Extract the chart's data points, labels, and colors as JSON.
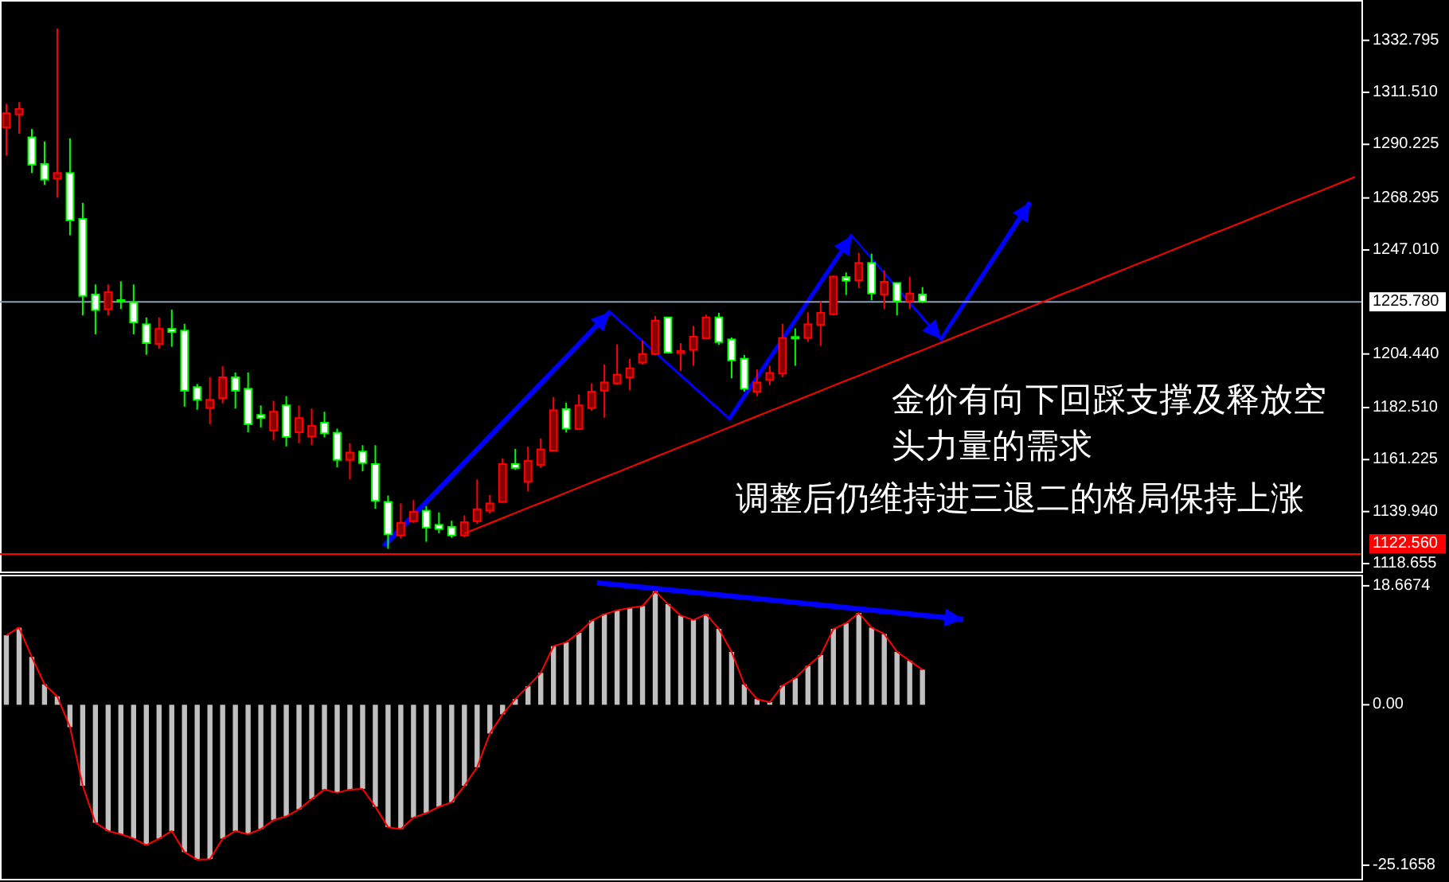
{
  "chart_data": [
    {
      "type": "candlestick",
      "tick_labels": "y",
      "categories": [
        null,
        null,
        null,
        null,
        null,
        null,
        null,
        null,
        null,
        null,
        null,
        null,
        null,
        null,
        null,
        null,
        null,
        null,
        null,
        null,
        null,
        null,
        null,
        null,
        null,
        null,
        null,
        null,
        null,
        null,
        null,
        null,
        null,
        null,
        null,
        null,
        null,
        null,
        null,
        null,
        null,
        null,
        null,
        null,
        null,
        null,
        null,
        null,
        null,
        null,
        null,
        null,
        null,
        null,
        null,
        null,
        null,
        null,
        null,
        null,
        null,
        null,
        null,
        null,
        null,
        null,
        null,
        null,
        null,
        null,
        null,
        null,
        null,
        null,
        null,
        null,
        null,
        null,
        null,
        null,
        null,
        null,
        null,
        null,
        null,
        null,
        null,
        null,
        null,
        null,
        null,
        null,
        null,
        null,
        null,
        null,
        null,
        null,
        null,
        null,
        null,
        null,
        null,
        null,
        null,
        null,
        null
      ],
      "ohlc": [
        [
          1297.2,
          1306.8,
          1285.6,
          1303.0
        ],
        [
          1302.5,
          1307.5,
          1294.6,
          1304.7
        ],
        [
          1293.1,
          1296.5,
          1278.5,
          1281.9
        ],
        [
          1282.2,
          1291.4,
          1273.6,
          1275.8
        ],
        [
          1276.2,
          1337.7,
          1268.4,
          1278.5
        ],
        [
          1278.5,
          1292.7,
          1253.0,
          1259.1
        ],
        [
          1259.7,
          1266.3,
          1220.2,
          1228.2
        ],
        [
          1228.8,
          1232.9,
          1212.5,
          1222.4
        ],
        [
          1222.8,
          1232.9,
          1220.2,
          1229.7
        ],
        [
          1226.5,
          1234.2,
          1222.8,
          1226.3
        ],
        [
          1225.6,
          1232.9,
          1212.5,
          1217.3
        ],
        [
          1216.6,
          1219.4,
          1204.1,
          1208.9
        ],
        [
          1208.6,
          1219.4,
          1206.5,
          1214.7
        ],
        [
          1214.7,
          1222.6,
          1207.4,
          1213.4
        ],
        [
          1214.0,
          1216.8,
          1182.9,
          1189.4
        ],
        [
          1190.9,
          1192.2,
          1181.6,
          1185.7
        ],
        [
          1182.3,
          1194.9,
          1175.7,
          1185.7
        ],
        [
          1186.4,
          1199.4,
          1184.2,
          1194.9
        ],
        [
          1194.9,
          1196.9,
          1182.1,
          1189.4
        ],
        [
          1190.2,
          1196.9,
          1172.4,
          1175.7
        ],
        [
          1179.5,
          1183.4,
          1174.4,
          1178.2
        ],
        [
          1173.1,
          1185.3,
          1169.2,
          1180.8
        ],
        [
          1183.4,
          1187.2,
          1166.6,
          1170.5
        ],
        [
          1172.4,
          1183.4,
          1167.9,
          1178.2
        ],
        [
          1170.7,
          1182.1,
          1167.1,
          1175.0
        ],
        [
          1176.3,
          1180.8,
          1170.3,
          1172.0
        ],
        [
          1172.2,
          1173.9,
          1158.1,
          1161.1
        ],
        [
          1161.1,
          1167.9,
          1153.1,
          1164.1
        ],
        [
          1164.5,
          1167.1,
          1156.4,
          1159.8
        ],
        [
          1159.4,
          1167.1,
          1141.1,
          1144.3
        ],
        [
          1143.9,
          1146.5,
          1124.7,
          1130.6
        ],
        [
          1130.2,
          1143.3,
          1128.9,
          1135.3
        ],
        [
          1136.0,
          1144.6,
          1135.3,
          1139.8
        ],
        [
          1140.3,
          1142.2,
          1127.6,
          1133.4
        ],
        [
          1134.5,
          1139.6,
          1131.1,
          1132.8
        ],
        [
          1133.7,
          1136.2,
          1129.2,
          1130.2
        ],
        [
          1130.2,
          1138.4,
          1129.5,
          1135.6
        ],
        [
          1136.0,
          1153.1,
          1134.9,
          1140.9
        ],
        [
          1140.3,
          1146.7,
          1139.2,
          1143.3
        ],
        [
          1143.9,
          1161.7,
          1143.5,
          1159.4
        ],
        [
          1159.4,
          1165.6,
          1157.0,
          1157.8
        ],
        [
          1152.1,
          1166.5,
          1148.2,
          1160.7
        ],
        [
          1159.1,
          1169.9,
          1157.8,
          1165.4
        ],
        [
          1164.9,
          1186.8,
          1164.9,
          1181.4
        ],
        [
          1181.9,
          1184.5,
          1172.4,
          1173.9
        ],
        [
          1173.7,
          1187.9,
          1173.3,
          1183.4
        ],
        [
          1182.3,
          1192.4,
          1181.2,
          1189.0
        ],
        [
          1189.4,
          1200.1,
          1178.4,
          1192.8
        ],
        [
          1192.4,
          1208.4,
          1191.9,
          1196.0
        ],
        [
          1194.9,
          1202.5,
          1189.6,
          1198.6
        ],
        [
          1200.9,
          1209.9,
          1200.1,
          1204.4
        ],
        [
          1204.4,
          1220.0,
          1203.9,
          1218.1
        ],
        [
          1219.4,
          1219.4,
          1204.6,
          1205.0
        ],
        [
          1204.8,
          1208.9,
          1197.5,
          1205.7
        ],
        [
          1206.1,
          1215.9,
          1199.6,
          1211.5
        ],
        [
          1210.8,
          1220.5,
          1210.4,
          1219.4
        ],
        [
          1219.4,
          1221.3,
          1208.2,
          1209.3
        ],
        [
          1210.4,
          1211.2,
          1194.5,
          1201.8
        ],
        [
          1202.5,
          1204.0,
          1189.0,
          1190.2
        ],
        [
          1189.0,
          1198.1,
          1187.2,
          1192.8
        ],
        [
          1193.8,
          1199.6,
          1191.7,
          1196.7
        ],
        [
          1196.4,
          1216.8,
          1194.9,
          1211.0
        ],
        [
          1211.4,
          1214.9,
          1199.6,
          1210.8
        ],
        [
          1211.0,
          1221.5,
          1209.5,
          1216.6
        ],
        [
          1216.4,
          1226.0,
          1207.8,
          1221.3
        ],
        [
          1220.7,
          1236.5,
          1220.2,
          1236.1
        ],
        [
          1235.9,
          1237.8,
          1228.6,
          1234.4
        ],
        [
          1234.6,
          1245.7,
          1231.4,
          1241.7
        ],
        [
          1241.7,
          1245.5,
          1226.5,
          1229.2
        ],
        [
          1228.8,
          1238.7,
          1222.8,
          1234.0
        ],
        [
          1233.5,
          1233.5,
          1220.2,
          1226.0
        ],
        [
          1226.0,
          1236.1,
          1222.8,
          1229.2
        ],
        [
          1228.8,
          1231.8,
          1225.4,
          1225.8
        ],
        null,
        null,
        null,
        null,
        null,
        null,
        null,
        null,
        null,
        null,
        null,
        null,
        null,
        null,
        null,
        null,
        null,
        null,
        null,
        null,
        null,
        null,
        null,
        null,
        null,
        null,
        null,
        null,
        null,
        null,
        null,
        null,
        null,
        null
      ],
      "series": [
        {
          "type": "line",
          "color": "#ff0000",
          "values": [
            null,
            null,
            null,
            null,
            null,
            null,
            null,
            null,
            null,
            null,
            null,
            null,
            null,
            null,
            null,
            null,
            null,
            null,
            null,
            null,
            null,
            null,
            null,
            null,
            null,
            null,
            null,
            null,
            null,
            null,
            null,
            null,
            null,
            null,
            null,
            null,
            1131.0,
            1133.1,
            1135.2,
            1137.3,
            1139.4,
            1141.5,
            1143.5,
            1145.6,
            1147.7,
            1149.8,
            1151.9,
            1154.0,
            1156.0,
            1158.1,
            1160.2,
            1162.3,
            1164.4,
            1166.5,
            1168.5,
            1170.6,
            1172.7,
            1174.8,
            1176.9,
            1179.0,
            1181.1,
            1183.1,
            1185.2,
            1187.3,
            1189.4,
            1191.5,
            1193.6,
            1195.6,
            1197.7,
            1199.8,
            1201.9,
            1204.0,
            1206.0,
            1208.1,
            1210.2,
            1212.3,
            1214.4,
            1216.5,
            1218.5,
            1220.6,
            1222.7,
            1224.8,
            1226.9,
            1229.0,
            1231.0,
            1233.1,
            1235.2,
            1237.3,
            1239.4,
            1241.5,
            1243.5,
            1245.6,
            1247.7,
            1249.8,
            1251.9,
            1254.0,
            1256.0,
            1258.1,
            1260.2,
            1262.3,
            1264.4,
            1266.5,
            1268.5,
            1270.6,
            1272.7,
            1274.8,
            1276.9
          ]
        }
      ],
      "ylim": [
        1115.4,
        1349.3
      ],
      "yticks": [
        {
          "value": 1332.795,
          "label": "1332.795"
        },
        {
          "value": 1311.51,
          "label": "1311.510"
        },
        {
          "value": 1290.225,
          "label": "1290.225"
        },
        {
          "value": 1268.295,
          "label": "1268.295"
        },
        {
          "value": 1247.01,
          "label": "1247.010"
        },
        {
          "value": 1204.44,
          "label": "1204.440"
        },
        {
          "value": 1182.51,
          "label": "1182.510"
        },
        {
          "value": 1161.225,
          "label": "1161.225"
        },
        {
          "value": 1139.94,
          "label": "1139.940"
        },
        {
          "value": 1118.655,
          "label": "1118.655"
        }
      ],
      "ref_lines": [
        {
          "axis": "y",
          "value": 1225.78,
          "label": "1225.780",
          "color": "#8c9cb8"
        },
        {
          "axis": "y",
          "value": 1122.56,
          "label": "1122.560",
          "color": "#ff0000"
        }
      ],
      "annotations": [
        "金价有向下回踩支撑及释放空头力量的需求",
        "调整后仍维持进三退二的格局保持上涨"
      ]
    },
    {
      "type": "bar",
      "tick_labels": "y",
      "categories": [
        null,
        null,
        null,
        null,
        null,
        null,
        null,
        null,
        null,
        null,
        null,
        null,
        null,
        null,
        null,
        null,
        null,
        null,
        null,
        null,
        null,
        null,
        null,
        null,
        null,
        null,
        null,
        null,
        null,
        null,
        null,
        null,
        null,
        null,
        null,
        null,
        null,
        null,
        null,
        null,
        null,
        null,
        null,
        null,
        null,
        null,
        null,
        null,
        null,
        null,
        null,
        null,
        null,
        null,
        null,
        null,
        null,
        null,
        null,
        null,
        null,
        null,
        null,
        null,
        null,
        null,
        null,
        null,
        null,
        null,
        null,
        null,
        null,
        null,
        null,
        null,
        null,
        null,
        null,
        null,
        null,
        null,
        null,
        null,
        null,
        null,
        null,
        null,
        null,
        null,
        null,
        null,
        null,
        null,
        null,
        null,
        null,
        null,
        null,
        null,
        null,
        null,
        null,
        null,
        null,
        null,
        null
      ],
      "series": [
        {
          "color": "#c0c0c0",
          "values": [
            10.9,
            12.1,
            7.5,
            3.2,
            1.3,
            -3.5,
            -12.7,
            -18.5,
            -19.8,
            -20.3,
            -21.0,
            -22.0,
            -21.0,
            -19.8,
            -23.1,
            -24.3,
            -24.2,
            -21.0,
            -19.8,
            -20.3,
            -19.5,
            -18.1,
            -17.5,
            -16.4,
            -14.8,
            -13.3,
            -13.8,
            -13.3,
            -13.2,
            -16.0,
            -19.2,
            -19.5,
            -17.7,
            -17.0,
            -16.0,
            -15.3,
            -12.7,
            -9.8,
            -4.5,
            -1.5,
            0.9,
            2.9,
            5.0,
            9.2,
            9.8,
            11.3,
            13.2,
            14.2,
            14.8,
            15.2,
            15.5,
            17.8,
            15.8,
            14.0,
            13.3,
            14.2,
            11.9,
            8.3,
            3.2,
            0.9,
            0.4,
            3.0,
            4.2,
            6.1,
            7.8,
            11.9,
            12.8,
            14.4,
            12.1,
            11.1,
            8.3,
            6.9,
            5.5,
            null,
            null,
            null,
            null,
            null,
            null,
            null,
            null,
            null,
            null,
            null,
            null,
            null,
            null,
            null,
            null,
            null,
            null,
            null,
            null,
            null,
            null,
            null,
            null,
            null,
            null,
            null,
            null,
            null,
            null,
            null,
            null,
            null,
            null
          ]
        },
        {
          "type": "line",
          "color": "#ff0000",
          "values": [
            10.9,
            12.1,
            7.5,
            3.2,
            1.3,
            -3.5,
            -12.7,
            -18.5,
            -19.8,
            -20.3,
            -21.0,
            -22.0,
            -21.0,
            -19.8,
            -23.1,
            -24.3,
            -24.2,
            -21.0,
            -19.8,
            -20.3,
            -19.5,
            -18.1,
            -17.5,
            -16.4,
            -14.8,
            -13.3,
            -13.8,
            -13.3,
            -13.2,
            -16.0,
            -19.2,
            -19.5,
            -17.7,
            -17.0,
            -16.0,
            -15.3,
            -12.7,
            -9.8,
            -4.5,
            -1.5,
            0.9,
            2.9,
            5.0,
            9.2,
            9.8,
            11.3,
            13.2,
            14.2,
            14.8,
            15.2,
            15.5,
            17.8,
            15.8,
            14.0,
            13.3,
            14.2,
            11.9,
            8.3,
            3.2,
            0.9,
            0.4,
            3.0,
            4.2,
            6.1,
            7.8,
            11.9,
            12.8,
            14.4,
            12.1,
            11.1,
            8.3,
            6.9,
            5.5,
            null,
            null,
            null,
            null,
            null,
            null,
            null,
            null,
            null,
            null,
            null,
            null,
            null,
            null,
            null,
            null,
            null,
            null,
            null,
            null,
            null,
            null,
            null,
            null,
            null,
            null,
            null,
            null,
            null,
            null,
            null,
            null,
            null,
            null
          ]
        }
      ],
      "ylim": [
        -27.3,
        20.4
      ],
      "yticks": [
        {
          "value": 18.6674,
          "label": "18.6674"
        },
        {
          "value": 0,
          "label": "0.00"
        },
        {
          "value": -25.1658,
          "label": "-25.1658"
        }
      ]
    }
  ]
}
